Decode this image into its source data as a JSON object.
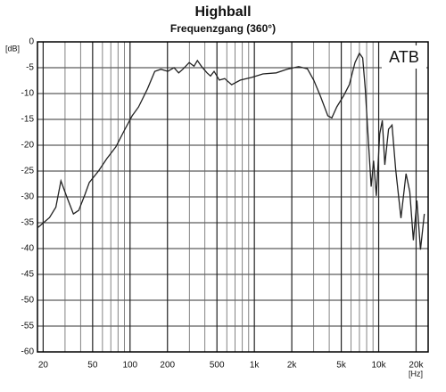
{
  "chart_data": {
    "type": "line",
    "title": "Highball",
    "subtitle": "Frequenzgang (360°)",
    "xlabel": "[Hz]",
    "ylabel": "[dB]",
    "annotation": "ATB",
    "xscale": "log",
    "grid": true,
    "color": "#222222",
    "xlim": [
      18,
      25000
    ],
    "ylim": [
      -60,
      0
    ],
    "xticks": [
      20,
      50,
      100,
      200,
      500,
      {
        "value": 1000,
        "label": "1k"
      },
      {
        "value": 2000,
        "label": "2k"
      },
      {
        "value": 5000,
        "label": "5k"
      },
      {
        "value": 10000,
        "label": "10k"
      },
      {
        "value": 20000,
        "label": "20k"
      }
    ],
    "xminor_ticks": [
      30,
      40,
      60,
      70,
      80,
      90,
      300,
      400,
      600,
      700,
      800,
      900,
      3000,
      4000,
      6000,
      7000,
      8000,
      9000
    ],
    "yticks": [
      0,
      -5,
      -10,
      -15,
      -20,
      -25,
      -30,
      -35,
      -40,
      -45,
      -50,
      -55,
      -60
    ],
    "x": [
      18,
      22.5,
      25.3,
      27.8,
      31,
      35,
      38.7,
      43.4,
      47,
      55.7,
      65,
      77,
      91,
      104,
      117,
      138,
      158,
      177,
      201,
      226,
      246,
      266,
      299,
      327,
      348,
      377,
      416,
      444,
      474,
      523,
      577,
      657,
      772,
      945,
      1170,
      1500,
      1830,
      2270,
      2670,
      3000,
      3400,
      3900,
      4200,
      4600,
      5200,
      5800,
      6450,
      7000,
      7440,
      7800,
      8200,
      8700,
      9100,
      9580,
      10200,
      10700,
      11200,
      12000,
      12800,
      13700,
      15100,
      16600,
      17800,
      19000,
      20300,
      21700,
      23300
    ],
    "values": [
      -36,
      -34,
      -32,
      -26.9,
      -30,
      -33.3,
      -32.6,
      -29.5,
      -27.2,
      -25,
      -22.6,
      -20.3,
      -16.9,
      -14.3,
      -12.6,
      -9.1,
      -5.7,
      -5.3,
      -5.7,
      -5,
      -6,
      -5.3,
      -4,
      -4.7,
      -3.6,
      -4.8,
      -6,
      -6.6,
      -5.7,
      -7.4,
      -7.1,
      -8.3,
      -7.4,
      -6.9,
      -6.2,
      -6,
      -5.3,
      -4.8,
      -5.2,
      -7.4,
      -10.5,
      -14.3,
      -14.7,
      -12.6,
      -10.5,
      -8.3,
      -4,
      -2.2,
      -3.1,
      -9.1,
      -17.8,
      -28,
      -23,
      -29.8,
      -17.8,
      -15.2,
      -23.8,
      -16.9,
      -16.1,
      -24.7,
      -34.1,
      -25.5,
      -29,
      -38.4,
      -30.7,
      -40.2,
      -33.3
    ]
  }
}
